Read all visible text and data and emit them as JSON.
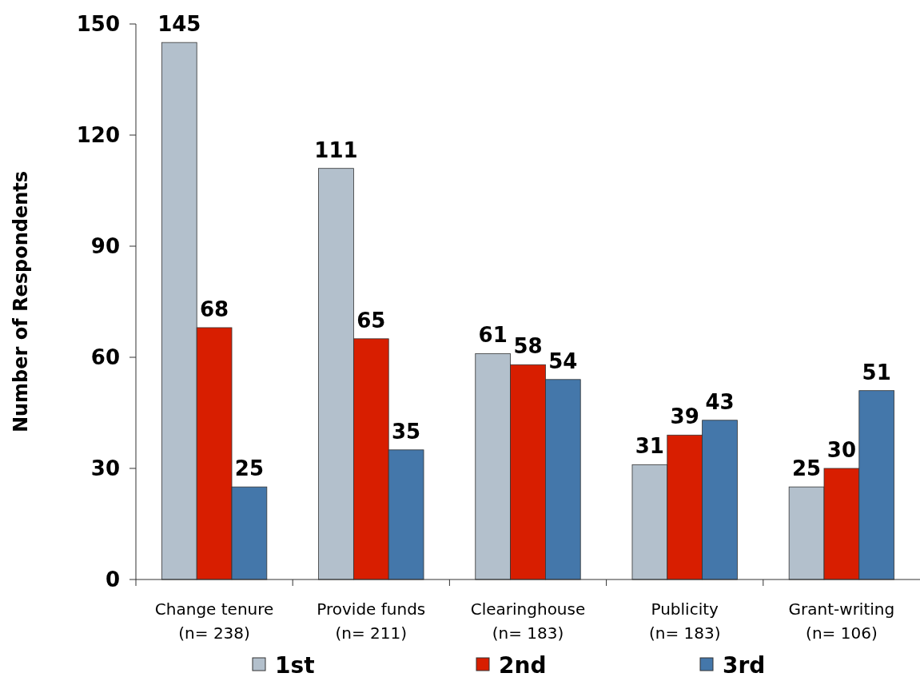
{
  "chart_data": {
    "type": "bar",
    "ylabel": "Number of Respondents",
    "categories": [
      "Change tenure\n(n= 238)",
      "Provide funds\n(n= 211)",
      "Clearinghouse\n(n= 183)",
      "Publicity\n(n= 183)",
      "Grant-writing\n(n= 106)"
    ],
    "series": [
      {
        "name": "1st",
        "color": "#b3c0cc",
        "values": [
          145,
          111,
          61,
          31,
          25
        ]
      },
      {
        "name": "2nd",
        "color": "#d81e00",
        "values": [
          68,
          65,
          58,
          39,
          30
        ]
      },
      {
        "name": "3rd",
        "color": "#4477aa",
        "values": [
          25,
          35,
          54,
          43,
          51
        ]
      }
    ],
    "ylim": [
      0,
      150
    ],
    "yticks": [
      0,
      30,
      60,
      90,
      120,
      150
    ],
    "data_labels": true,
    "legend": "bottom",
    "grid": false
  }
}
